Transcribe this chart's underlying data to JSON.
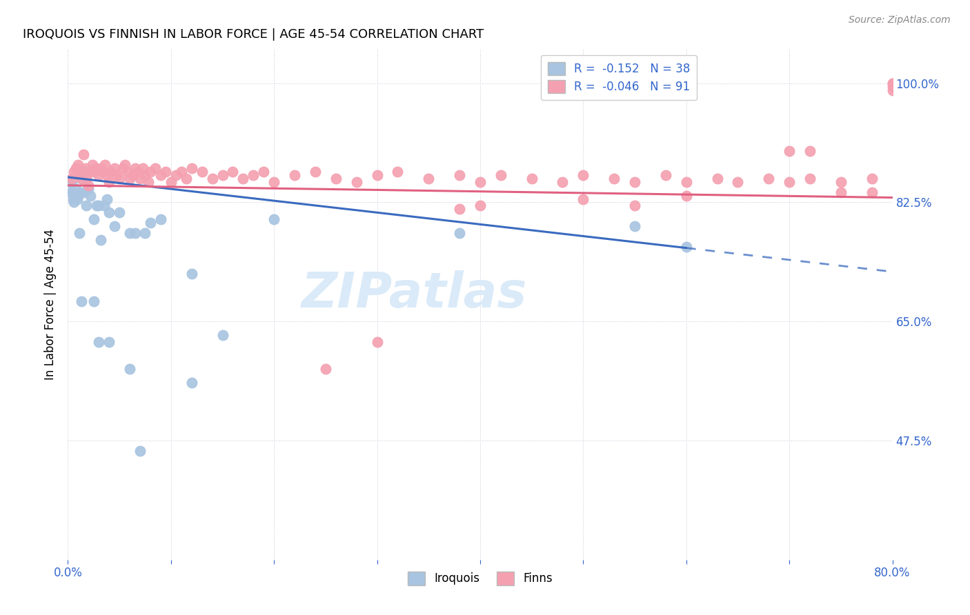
{
  "title": "IROQUOIS VS FINNISH IN LABOR FORCE | AGE 45-54 CORRELATION CHART",
  "source": "Source: ZipAtlas.com",
  "ylabel": "In Labor Force | Age 45-54",
  "x_min": 0.0,
  "x_max": 0.8,
  "y_min": 0.3,
  "y_max": 1.05,
  "x_tick_positions": [
    0.0,
    0.1,
    0.2,
    0.3,
    0.4,
    0.5,
    0.6,
    0.7,
    0.8
  ],
  "x_tick_labels": [
    "0.0%",
    "",
    "",
    "",
    "",
    "",
    "",
    "",
    "80.0%"
  ],
  "y_tick_positions": [
    0.475,
    0.65,
    0.825,
    1.0
  ],
  "y_tick_labels": [
    "47.5%",
    "65.0%",
    "82.5%",
    "100.0%"
  ],
  "R_iroquois": -0.152,
  "N_iroquois": 38,
  "R_finns": -0.046,
  "N_finns": 91,
  "iroquois_color": "#a8c4e0",
  "finns_color": "#f4a0b0",
  "iroquois_line_color": "#3a6abf",
  "finns_line_color": "#e06080",
  "iroquois_x": [
    0.002,
    0.003,
    0.004,
    0.005,
    0.005,
    0.006,
    0.007,
    0.008,
    0.009,
    0.01,
    0.011,
    0.012,
    0.013,
    0.015,
    0.016,
    0.018,
    0.02,
    0.022,
    0.025,
    0.028,
    0.03,
    0.032,
    0.035,
    0.038,
    0.04,
    0.045,
    0.05,
    0.06,
    0.065,
    0.075,
    0.08,
    0.09,
    0.12,
    0.15,
    0.2,
    0.38,
    0.55,
    0.6
  ],
  "iroquois_y": [
    0.855,
    0.84,
    0.855,
    0.83,
    0.84,
    0.825,
    0.835,
    0.845,
    0.83,
    0.835,
    0.78,
    0.84,
    0.86,
    0.84,
    0.87,
    0.82,
    0.845,
    0.835,
    0.8,
    0.82,
    0.82,
    0.77,
    0.82,
    0.83,
    0.81,
    0.79,
    0.81,
    0.78,
    0.78,
    0.78,
    0.795,
    0.8,
    0.72,
    0.63,
    0.8,
    0.78,
    0.79,
    0.76
  ],
  "iroquois_y_outliers": [
    0.68,
    0.62,
    0.58,
    0.68,
    0.62,
    0.56,
    0.46
  ],
  "iroquois_x_outliers": [
    0.013,
    0.03,
    0.06,
    0.025,
    0.04,
    0.12,
    0.07
  ],
  "finns_x": [
    0.004,
    0.006,
    0.008,
    0.01,
    0.012,
    0.013,
    0.015,
    0.017,
    0.018,
    0.02,
    0.022,
    0.024,
    0.025,
    0.027,
    0.03,
    0.032,
    0.034,
    0.036,
    0.038,
    0.04,
    0.042,
    0.045,
    0.047,
    0.05,
    0.053,
    0.055,
    0.058,
    0.06,
    0.063,
    0.065,
    0.068,
    0.07,
    0.073,
    0.075,
    0.078,
    0.08,
    0.085,
    0.09,
    0.095,
    0.1,
    0.105,
    0.11,
    0.115,
    0.12,
    0.13,
    0.14,
    0.15,
    0.16,
    0.17,
    0.18,
    0.19,
    0.2,
    0.22,
    0.24,
    0.26,
    0.28,
    0.3,
    0.32,
    0.35,
    0.38,
    0.4,
    0.42,
    0.45,
    0.48,
    0.5,
    0.53,
    0.55,
    0.58,
    0.6,
    0.63,
    0.65,
    0.68,
    0.7,
    0.72,
    0.75,
    0.78,
    0.8,
    0.8,
    0.8,
    0.8,
    0.78,
    0.75,
    0.72,
    0.7,
    0.55,
    0.4,
    0.38,
    0.3,
    0.25,
    0.5,
    0.6
  ],
  "finns_y": [
    0.86,
    0.87,
    0.875,
    0.88,
    0.87,
    0.86,
    0.895,
    0.875,
    0.86,
    0.85,
    0.87,
    0.88,
    0.87,
    0.875,
    0.865,
    0.875,
    0.87,
    0.88,
    0.865,
    0.855,
    0.87,
    0.875,
    0.865,
    0.86,
    0.875,
    0.88,
    0.87,
    0.86,
    0.865,
    0.875,
    0.87,
    0.86,
    0.875,
    0.865,
    0.855,
    0.87,
    0.875,
    0.865,
    0.87,
    0.855,
    0.865,
    0.87,
    0.86,
    0.875,
    0.87,
    0.86,
    0.865,
    0.87,
    0.86,
    0.865,
    0.87,
    0.855,
    0.865,
    0.87,
    0.86,
    0.855,
    0.865,
    0.87,
    0.86,
    0.865,
    0.855,
    0.865,
    0.86,
    0.855,
    0.865,
    0.86,
    0.855,
    0.865,
    0.855,
    0.86,
    0.855,
    0.86,
    0.855,
    0.86,
    0.855,
    0.86,
    1.0,
    1.0,
    0.995,
    0.99,
    0.84,
    0.84,
    0.9,
    0.9,
    0.82,
    0.82,
    0.815,
    0.62,
    0.58,
    0.83,
    0.835
  ],
  "blue_line_x0": 0.0,
  "blue_line_y0": 0.862,
  "blue_line_x1": 0.6,
  "blue_line_y1": 0.758,
  "blue_line_dash_x1": 0.8,
  "blue_line_dash_y1": 0.723,
  "pink_line_x0": 0.0,
  "pink_line_y0": 0.85,
  "pink_line_x1": 0.8,
  "pink_line_y1": 0.832
}
